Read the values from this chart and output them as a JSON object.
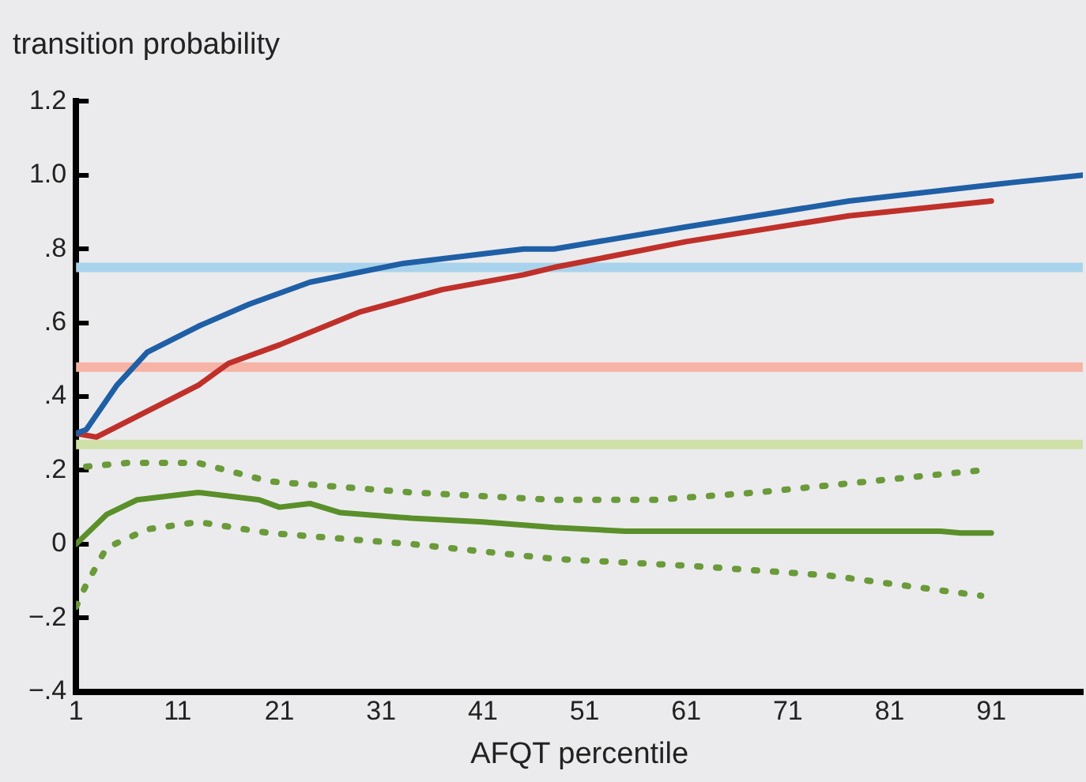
{
  "chart_data": {
    "type": "line",
    "ylabel": "transition probability",
    "xlabel": "AFQT percentile",
    "xlim": [
      1,
      100
    ],
    "xticks": [
      1,
      11,
      21,
      31,
      41,
      51,
      61,
      71,
      81,
      91
    ],
    "ylim": [
      -0.4,
      1.2
    ],
    "yticks": [
      {
        "value": -0.4,
        "label": "−.4"
      },
      {
        "value": -0.2,
        "label": "−.2"
      },
      0,
      {
        "value": 0.2,
        "label": ".2"
      },
      {
        "value": 0.4,
        "label": ".4"
      },
      {
        "value": 0.6,
        "label": ".6"
      },
      {
        "value": 0.8,
        "label": ".8"
      },
      {
        "value": 1.0,
        "label": "1.0"
      },
      1.2
    ],
    "grid": false,
    "legend": false,
    "marker": "none",
    "ref_lines": [
      {
        "axis": "y",
        "value": 0.75,
        "color": "#a9d3ec"
      },
      {
        "axis": "y",
        "value": 0.48,
        "color": "#f6b3a6"
      },
      {
        "axis": "y",
        "value": 0.27,
        "color": "#cfe0a8"
      }
    ],
    "series": [
      {
        "color": "#1f5fa6",
        "line_style": "solid",
        "x": [
          1,
          2,
          5,
          8,
          13,
          18,
          24,
          33,
          45,
          48,
          61,
          77,
          93,
          100
        ],
        "values": [
          0.3,
          0.31,
          0.43,
          0.52,
          0.59,
          0.65,
          0.71,
          0.76,
          0.8,
          0.8,
          0.86,
          0.93,
          0.98,
          1.0
        ]
      },
      {
        "color": "#c0302a",
        "line_style": "solid",
        "x": [
          1,
          3,
          8,
          13,
          16,
          21,
          29,
          37,
          45,
          48,
          61,
          77,
          91
        ],
        "values": [
          0.3,
          0.29,
          0.36,
          0.43,
          0.49,
          0.54,
          0.63,
          0.69,
          0.73,
          0.75,
          0.82,
          0.89,
          0.93
        ]
      },
      {
        "color": "#5a8f2a",
        "line_style": "solid",
        "x": [
          1,
          4,
          7,
          13,
          19,
          21,
          24,
          27,
          34,
          41,
          48,
          55,
          63,
          86,
          88,
          91
        ],
        "values": [
          0.0,
          0.08,
          0.12,
          0.14,
          0.12,
          0.1,
          0.11,
          0.085,
          0.07,
          0.06,
          0.045,
          0.035,
          0.035,
          0.035,
          0.03,
          0.03
        ]
      },
      {
        "color": "#6a9a3a",
        "line_style": "dotted",
        "x": [
          2,
          6,
          13,
          20,
          34,
          48,
          58,
          68,
          79,
          90
        ],
        "values": [
          0.21,
          0.22,
          0.22,
          0.17,
          0.14,
          0.12,
          0.12,
          0.14,
          0.17,
          0.2
        ]
      },
      {
        "color": "#6a9a3a",
        "line_style": "dotted",
        "x": [
          1,
          2,
          4,
          8,
          13,
          20,
          34,
          48,
          62,
          75,
          90
        ],
        "values": [
          -0.17,
          -0.11,
          -0.01,
          0.04,
          0.06,
          0.03,
          0.0,
          -0.04,
          -0.06,
          -0.085,
          -0.14
        ]
      }
    ]
  }
}
